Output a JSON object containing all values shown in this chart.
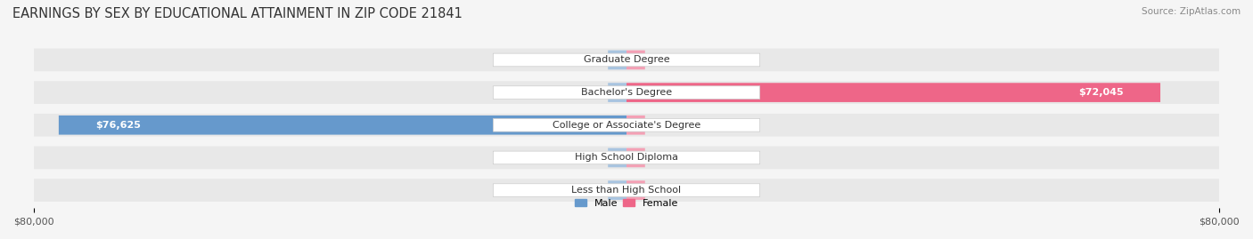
{
  "title": "EARNINGS BY SEX BY EDUCATIONAL ATTAINMENT IN ZIP CODE 21841",
  "source": "Source: ZipAtlas.com",
  "categories": [
    "Less than High School",
    "High School Diploma",
    "College or Associate's Degree",
    "Bachelor's Degree",
    "Graduate Degree"
  ],
  "male_values": [
    0,
    0,
    76625,
    0,
    0
  ],
  "female_values": [
    0,
    0,
    0,
    72045,
    0
  ],
  "male_color": "#a8c4e0",
  "male_color_dark": "#6699cc",
  "female_color": "#f4a0b5",
  "female_color_dark": "#ee6688",
  "x_max": 80000,
  "x_min": -80000,
  "background_color": "#f0f0f0",
  "row_background": "#e8e8e8",
  "legend_male": "Male",
  "legend_female": "Female",
  "x_ticks": [
    -80000,
    80000
  ],
  "x_tick_labels": [
    "$80,000",
    "$80,000"
  ]
}
